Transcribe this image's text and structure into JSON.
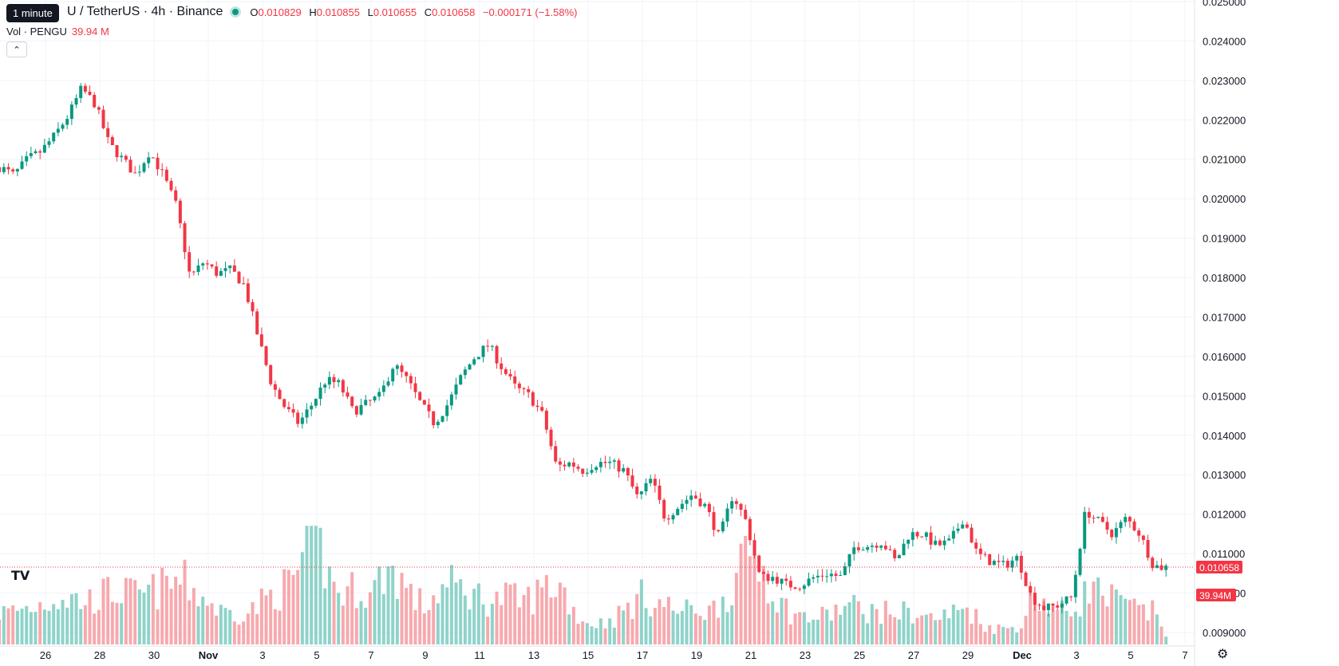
{
  "header": {
    "tooltip": "1 minute",
    "symbol": "U / TetherUS · 4h · Binance",
    "ohlc": {
      "o_label": "O",
      "o": "0.010829",
      "h_label": "H",
      "h": "0.010855",
      "l_label": "L",
      "l": "0.010655",
      "c_label": "C",
      "c": "0.010658",
      "change": "−0.000171 (−1.58%)"
    },
    "volume_label": "Vol · PENGU",
    "volume_value": "39.94 M",
    "collapse_icon": "chevron-up-icon",
    "logo_icon": "tradingview-logo-icon",
    "logo_text": "TV",
    "settings_icon": "gear-icon"
  },
  "colors": {
    "up": "#089981",
    "down": "#f23645",
    "up_vol": "#8fd3c9",
    "down_vol": "#f7a9ae",
    "grid": "#f0f3fa",
    "text": "#131722"
  },
  "chart_data": {
    "type": "candlestick",
    "interval": "4h",
    "y_ticks": [
      "0.009000",
      "0.010000",
      "0.011000",
      "0.012000",
      "0.013000",
      "0.014000",
      "0.015000",
      "0.016000",
      "0.017000",
      "0.018000",
      "0.019000",
      "0.020000",
      "0.021000",
      "0.022000",
      "0.023000",
      "0.024000",
      "0.025000"
    ],
    "ylim": [
      0.00815,
      0.02504
    ],
    "x_ticks": [
      {
        "label": "26",
        "day": 26
      },
      {
        "label": "28",
        "day": 28
      },
      {
        "label": "30",
        "day": 30
      },
      {
        "label": "Nov",
        "day": 32
      },
      {
        "label": "3",
        "day": 34
      },
      {
        "label": "5",
        "day": 36
      },
      {
        "label": "7",
        "day": 38
      },
      {
        "label": "9",
        "day": 40
      },
      {
        "label": "11",
        "day": 42
      },
      {
        "label": "13",
        "day": 44
      },
      {
        "label": "15",
        "day": 46
      },
      {
        "label": "17",
        "day": 48
      },
      {
        "label": "19",
        "day": 50
      },
      {
        "label": "21",
        "day": 52
      },
      {
        "label": "23",
        "day": 54
      },
      {
        "label": "25",
        "day": 56
      },
      {
        "label": "27",
        "day": 58
      },
      {
        "label": "29",
        "day": 60
      },
      {
        "label": "Dec",
        "day": 62
      },
      {
        "label": "3",
        "day": 64
      },
      {
        "label": "5",
        "day": 66
      },
      {
        "label": "7",
        "day": 68
      }
    ],
    "current_price": "0.010658",
    "current_volume": "39.94M",
    "price_path": [
      [
        24.5,
        0.0208
      ],
      [
        25.0,
        0.0206
      ],
      [
        25.5,
        0.021
      ],
      [
        26.0,
        0.0212
      ],
      [
        26.5,
        0.0216
      ],
      [
        27.0,
        0.0221
      ],
      [
        27.5,
        0.0228
      ],
      [
        28.0,
        0.0224
      ],
      [
        28.5,
        0.0214
      ],
      [
        29.0,
        0.021
      ],
      [
        29.5,
        0.0206
      ],
      [
        30.0,
        0.0212
      ],
      [
        30.5,
        0.0206
      ],
      [
        31.0,
        0.0198
      ],
      [
        31.5,
        0.018
      ],
      [
        32.0,
        0.0184
      ],
      [
        32.5,
        0.0181
      ],
      [
        33.0,
        0.0182
      ],
      [
        33.5,
        0.0178
      ],
      [
        34.0,
        0.0165
      ],
      [
        34.5,
        0.0153
      ],
      [
        35.0,
        0.0147
      ],
      [
        35.5,
        0.0143
      ],
      [
        36.0,
        0.0148
      ],
      [
        36.5,
        0.0154
      ],
      [
        37.0,
        0.0153
      ],
      [
        37.5,
        0.0146
      ],
      [
        38.0,
        0.0148
      ],
      [
        38.5,
        0.015
      ],
      [
        39.0,
        0.0158
      ],
      [
        39.5,
        0.0154
      ],
      [
        40.0,
        0.0148
      ],
      [
        40.5,
        0.0143
      ],
      [
        41.0,
        0.0148
      ],
      [
        41.5,
        0.0155
      ],
      [
        42.0,
        0.016
      ],
      [
        42.5,
        0.0163
      ],
      [
        43.0,
        0.0157
      ],
      [
        43.5,
        0.0152
      ],
      [
        44.0,
        0.015
      ],
      [
        44.5,
        0.0145
      ],
      [
        45.0,
        0.0132
      ],
      [
        45.5,
        0.0133
      ],
      [
        46.0,
        0.0131
      ],
      [
        46.5,
        0.0133
      ],
      [
        47.0,
        0.0133
      ],
      [
        47.5,
        0.0131
      ],
      [
        48.0,
        0.0124
      ],
      [
        48.5,
        0.0129
      ],
      [
        49.0,
        0.0119
      ],
      [
        49.5,
        0.0122
      ],
      [
        50.0,
        0.0125
      ],
      [
        50.5,
        0.0122
      ],
      [
        51.0,
        0.0114
      ],
      [
        51.5,
        0.0125
      ],
      [
        52.0,
        0.0118
      ],
      [
        52.5,
        0.0104
      ],
      [
        53.0,
        0.0104
      ],
      [
        53.5,
        0.0102
      ],
      [
        54.0,
        0.0102
      ],
      [
        54.5,
        0.0104
      ],
      [
        55.0,
        0.0105
      ],
      [
        55.5,
        0.0104
      ],
      [
        56.0,
        0.0112
      ],
      [
        56.5,
        0.0112
      ],
      [
        57.0,
        0.0113
      ],
      [
        57.5,
        0.0108
      ],
      [
        58.0,
        0.0115
      ],
      [
        58.5,
        0.0115
      ],
      [
        59.0,
        0.0112
      ],
      [
        59.5,
        0.0113
      ],
      [
        60.0,
        0.0119
      ],
      [
        60.5,
        0.011
      ],
      [
        61.0,
        0.0108
      ],
      [
        61.5,
        0.0107
      ],
      [
        62.0,
        0.0109
      ],
      [
        62.5,
        0.0099
      ],
      [
        63.0,
        0.0096
      ],
      [
        63.5,
        0.0097
      ],
      [
        64.0,
        0.0099
      ],
      [
        64.5,
        0.0121
      ],
      [
        65.0,
        0.0118
      ],
      [
        65.5,
        0.0115
      ],
      [
        66.0,
        0.0119
      ],
      [
        66.5,
        0.0115
      ],
      [
        67.0,
        0.0107
      ],
      [
        67.3,
        0.010658
      ]
    ],
    "volume_path": [
      [
        24.5,
        0.3
      ],
      [
        25.5,
        0.35
      ],
      [
        26.5,
        0.45
      ],
      [
        27.5,
        0.4
      ],
      [
        28.5,
        0.5
      ],
      [
        29.5,
        0.45
      ],
      [
        30.5,
        0.55
      ],
      [
        31.0,
        0.6
      ],
      [
        31.5,
        0.5
      ],
      [
        32.5,
        0.3
      ],
      [
        33.5,
        0.3
      ],
      [
        34.5,
        0.5
      ],
      [
        35.0,
        0.55
      ],
      [
        35.5,
        0.8
      ],
      [
        36.0,
        1.0
      ],
      [
        36.5,
        0.6
      ],
      [
        37.0,
        0.45
      ],
      [
        37.5,
        0.55
      ],
      [
        38.0,
        0.45
      ],
      [
        38.5,
        0.7
      ],
      [
        39.0,
        0.65
      ],
      [
        39.5,
        0.45
      ],
      [
        40.0,
        0.35
      ],
      [
        40.5,
        0.5
      ],
      [
        41.0,
        0.55
      ],
      [
        41.5,
        0.5
      ],
      [
        42.0,
        0.45
      ],
      [
        42.5,
        0.4
      ],
      [
        43.0,
        0.45
      ],
      [
        43.5,
        0.4
      ],
      [
        44.0,
        0.45
      ],
      [
        44.5,
        0.55
      ],
      [
        45.0,
        0.55
      ],
      [
        45.5,
        0.3
      ],
      [
        46.0,
        0.2
      ],
      [
        46.5,
        0.2
      ],
      [
        47.0,
        0.25
      ],
      [
        47.5,
        0.35
      ],
      [
        48.0,
        0.45
      ],
      [
        48.5,
        0.4
      ],
      [
        49.0,
        0.35
      ],
      [
        49.5,
        0.3
      ],
      [
        50.0,
        0.35
      ],
      [
        50.5,
        0.3
      ],
      [
        51.0,
        0.45
      ],
      [
        51.5,
        0.6
      ],
      [
        52.0,
        0.9
      ],
      [
        52.5,
        0.7
      ],
      [
        53.0,
        0.4
      ],
      [
        53.5,
        0.3
      ],
      [
        54.0,
        0.25
      ],
      [
        54.5,
        0.25
      ],
      [
        55.0,
        0.3
      ],
      [
        55.5,
        0.35
      ],
      [
        56.0,
        0.35
      ],
      [
        56.5,
        0.3
      ],
      [
        57.0,
        0.3
      ],
      [
        57.5,
        0.3
      ],
      [
        58.0,
        0.3
      ],
      [
        58.5,
        0.25
      ],
      [
        59.0,
        0.25
      ],
      [
        59.5,
        0.3
      ],
      [
        60.0,
        0.35
      ],
      [
        60.5,
        0.2
      ],
      [
        61.0,
        0.15
      ],
      [
        61.5,
        0.15
      ],
      [
        62.0,
        0.2
      ],
      [
        62.5,
        0.5
      ],
      [
        63.0,
        0.35
      ],
      [
        63.5,
        0.3
      ],
      [
        64.0,
        0.35
      ],
      [
        64.5,
        0.55
      ],
      [
        65.0,
        0.45
      ],
      [
        65.5,
        0.4
      ],
      [
        66.0,
        0.35
      ],
      [
        66.5,
        0.3
      ],
      [
        67.0,
        0.3
      ],
      [
        67.3,
        0.1
      ]
    ]
  }
}
